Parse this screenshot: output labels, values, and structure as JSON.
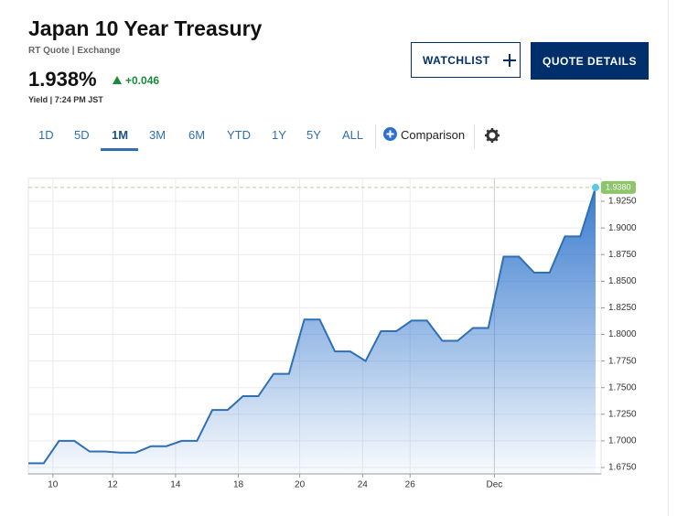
{
  "header": {
    "title": "Japan 10 Year Treasury",
    "source": "RT Quote | Exchange",
    "price": "1.938%",
    "change": "+0.046",
    "meta": "Yield | 7:24 PM JST"
  },
  "buttons": {
    "watchlist": "WATCHLIST",
    "quote_details": "QUOTE DETAILS"
  },
  "tabs": [
    "1D",
    "5D",
    "1M",
    "3M",
    "6M",
    "YTD",
    "1Y",
    "5Y",
    "ALL"
  ],
  "active_tab": 2,
  "comparison": "Comparison",
  "chart_data": {
    "type": "area",
    "x": [
      0,
      1,
      2,
      3,
      4,
      5,
      6,
      7,
      8,
      9,
      10,
      11,
      12,
      13,
      14,
      15,
      16,
      17,
      18,
      19,
      20,
      21,
      22,
      23,
      24,
      25,
      26,
      27,
      28,
      29,
      30,
      31,
      32,
      33,
      34,
      35,
      36,
      37
    ],
    "series": [
      {
        "name": "Japan 10 Year Treasury",
        "color": "#2e6fb6",
        "values": [
          1.679,
          1.679,
          1.7,
          1.7,
          1.69,
          1.69,
          1.689,
          1.689,
          1.695,
          1.695,
          1.7,
          1.7,
          1.729,
          1.729,
          1.742,
          1.742,
          1.763,
          1.763,
          1.814,
          1.814,
          1.784,
          1.784,
          1.775,
          1.803,
          1.803,
          1.813,
          1.813,
          1.794,
          1.794,
          1.806,
          1.806,
          1.873,
          1.873,
          1.858,
          1.858,
          1.892,
          1.892,
          1.938
        ]
      }
    ],
    "xlim": [
      0,
      37
    ],
    "xticks": [
      {
        "value": 1.6,
        "label": "10"
      },
      {
        "value": 5.5,
        "label": "12"
      },
      {
        "value": 9.6,
        "label": "14"
      },
      {
        "value": 13.7,
        "label": "18"
      },
      {
        "value": 17.7,
        "label": "20"
      },
      {
        "value": 21.8,
        "label": "24"
      },
      {
        "value": 24.9,
        "label": "26"
      },
      {
        "value": 30.4,
        "label": "Dec"
      }
    ],
    "ylim": [
      1.669,
      1.9465
    ],
    "yticks": [
      {
        "value": 1.675,
        "label": "1.6750"
      },
      {
        "value": 1.7,
        "label": "1.7000"
      },
      {
        "value": 1.725,
        "label": "1.7250"
      },
      {
        "value": 1.75,
        "label": "1.7500"
      },
      {
        "value": 1.775,
        "label": "1.7750"
      },
      {
        "value": 1.8,
        "label": "1.8000"
      },
      {
        "value": 1.825,
        "label": "1.8250"
      },
      {
        "value": 1.85,
        "label": "1.8500"
      },
      {
        "value": 1.875,
        "label": "1.8750"
      },
      {
        "value": 1.9,
        "label": "1.9000"
      },
      {
        "value": 1.925,
        "label": "1.9250"
      }
    ],
    "last_value": {
      "value": 1.938,
      "label": "1.9380"
    },
    "grid": true
  }
}
